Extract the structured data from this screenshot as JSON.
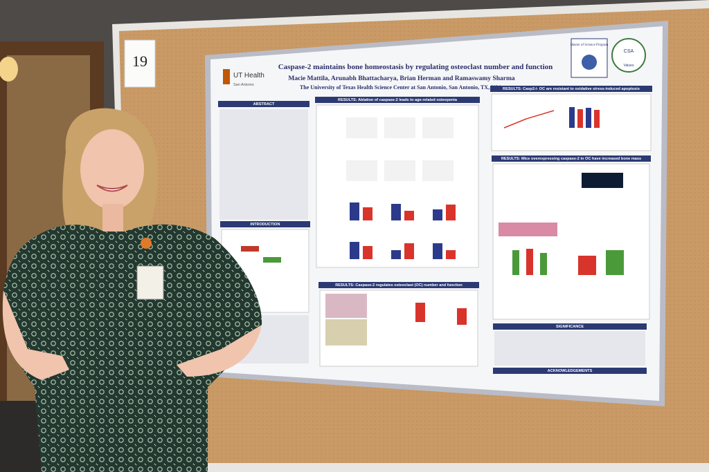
{
  "card_number": "19",
  "poster": {
    "title": "Caspase-2 maintains bone homeostasis by regulating osteoclast number and function",
    "authors": "Macie Mattila, Arunabh Bhattacharya, Brian Herman and Ramaswamy Sharma",
    "affiliation": "The University of Texas Health Science Center at San Antonio, San Antonio, TX, USA.",
    "logo": {
      "name": "UT Health",
      "location": "San Antonio"
    },
    "badges": [
      "Master of Science Program",
      "CSA",
      "Values"
    ],
    "sections": {
      "abstract": "ABSTRACT",
      "introduction": "INTRODUCTION",
      "result_osteopenia": "RESULTS: Ablation of caspase-2 leads to age-related osteopenia",
      "result_osteoclast": "RESULTS: Caspase-2 regulates osteoclast (OC) number and function",
      "result_apoptosis": "RESULTS: Casp2-/- OC are resistant to oxidative stress-induced apoptosis",
      "result_bone_mass": "RESULTS: Mice overexpressing caspase-2 in OC have increased bone mass",
      "significance": "SIGNIFICANCE",
      "acknowledgements": "ACKNOWLEDGEMENTS"
    }
  }
}
